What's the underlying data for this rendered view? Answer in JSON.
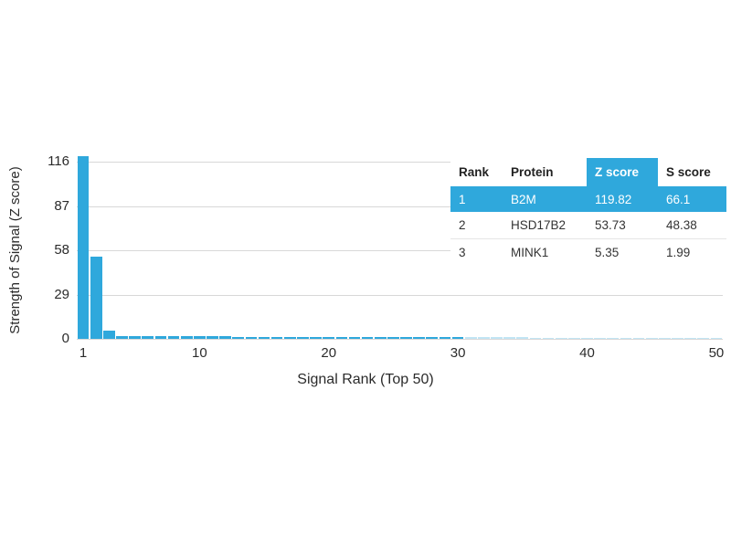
{
  "chart_data": {
    "type": "bar",
    "title": "",
    "xlabel": "Signal Rank (Top 50)",
    "ylabel": "Strength of Signal (Z score)",
    "yticks": [
      0,
      29,
      58,
      87,
      116
    ],
    "xticks": [
      1,
      10,
      20,
      30,
      40,
      50
    ],
    "ylim": [
      0,
      122
    ],
    "xlim": [
      1,
      50
    ],
    "grid": true,
    "legend": false,
    "bar_color": "#2fa8dc",
    "bar_color_light": "#c2e5f4",
    "light_from_rank": 31,
    "values": [
      119.82,
      53.73,
      5.35,
      1.9,
      1.8,
      1.75,
      1.7,
      1.65,
      1.6,
      1.55,
      1.5,
      1.5,
      1.45,
      1.45,
      1.4,
      1.4,
      1.35,
      1.35,
      1.3,
      1.3,
      1.25,
      1.25,
      1.2,
      1.2,
      1.15,
      1.15,
      1.1,
      1.1,
      1.05,
      1.05,
      1.0,
      0.95,
      0.95,
      0.9,
      0.9,
      0.85,
      0.85,
      0.8,
      0.8,
      0.75,
      0.75,
      0.7,
      0.7,
      0.65,
      0.65,
      0.6,
      0.6,
      0.55,
      0.55,
      0.5
    ]
  },
  "inset_table": {
    "columns": [
      "Rank",
      "Protein",
      "Z score",
      "S score"
    ],
    "highlight_column": "Z score",
    "highlight_color": "#2fa8dc",
    "rows": [
      {
        "rank": "1",
        "protein": "B2M",
        "z_score": "119.82",
        "s_score": "66.1",
        "highlighted": true
      },
      {
        "rank": "2",
        "protein": "HSD17B2",
        "z_score": "53.73",
        "s_score": "48.38",
        "highlighted": false
      },
      {
        "rank": "3",
        "protein": "MINK1",
        "z_score": "5.35",
        "s_score": "1.99",
        "highlighted": false
      }
    ]
  },
  "colors": {
    "gridline": "#d8d8d8",
    "axis_text": "#2b2b2b",
    "background": "#ffffff"
  }
}
